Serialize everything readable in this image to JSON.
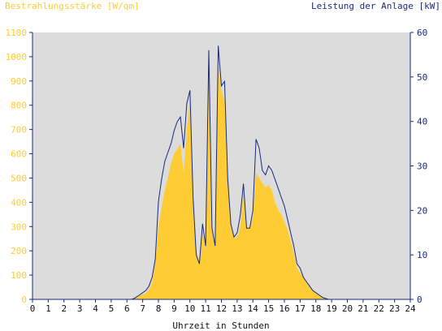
{
  "chart_data": {
    "type": "area",
    "title": "",
    "left_axis_label": "Bestrahlungsstärke [W/qm]",
    "right_axis_label": "Leistung der Anlage [kW]",
    "xlabel": "Uhrzeit in Stunden",
    "xlim": [
      0,
      24
    ],
    "ylim_left": [
      0,
      1100
    ],
    "ylim_right": [
      0,
      60
    ],
    "x_ticks": [
      "0",
      "1",
      "2",
      "3",
      "4",
      "5",
      "6",
      "7",
      "8",
      "9",
      "10",
      "11",
      "12",
      "13",
      "14",
      "15",
      "16",
      "17",
      "18",
      "19",
      "20",
      "21",
      "22",
      "23",
      "24"
    ],
    "y_left_ticks": [
      "0",
      "100",
      "200",
      "300",
      "400",
      "500",
      "600",
      "700",
      "800",
      "900",
      "1000",
      "1100"
    ],
    "y_right_ticks": [
      "0",
      "10",
      "20",
      "30",
      "40",
      "50",
      "60"
    ],
    "grid": false,
    "colors": {
      "irradiance": "#ffcc33",
      "power": "#1a2a7a",
      "plot_background": "#dcdcdc",
      "left_axis_text": "#ffcc33",
      "right_axis_text": "#1a2a7a"
    },
    "series": [
      {
        "name": "Bestrahlungsstärke [W/qm]",
        "axis": "left",
        "style": "filled-area",
        "x": [
          0,
          6.3,
          6.5,
          6.8,
          7.0,
          7.2,
          7.4,
          7.6,
          7.8,
          8.0,
          8.2,
          8.4,
          8.6,
          8.8,
          9.0,
          9.2,
          9.4,
          9.6,
          9.8,
          10.0,
          10.2,
          10.4,
          10.6,
          10.8,
          11.0,
          11.2,
          11.4,
          11.6,
          11.8,
          12.0,
          12.2,
          12.4,
          12.6,
          12.8,
          13.0,
          13.2,
          13.4,
          13.6,
          13.8,
          14.0,
          14.2,
          14.4,
          14.6,
          14.8,
          15.0,
          15.2,
          15.4,
          15.6,
          15.8,
          16.0,
          16.2,
          16.4,
          16.6,
          16.8,
          17.0,
          17.2,
          17.4,
          17.6,
          17.8,
          18.0,
          18.2,
          18.4,
          18.6,
          18.8,
          19.0,
          19.2,
          24
        ],
        "values": [
          0,
          0,
          5,
          15,
          20,
          25,
          40,
          70,
          150,
          300,
          380,
          450,
          500,
          560,
          600,
          620,
          640,
          520,
          700,
          820,
          420,
          180,
          150,
          280,
          200,
          1000,
          280,
          210,
          980,
          860,
          820,
          480,
          300,
          250,
          260,
          300,
          440,
          300,
          290,
          340,
          520,
          500,
          480,
          460,
          470,
          450,
          400,
          370,
          350,
          320,
          290,
          240,
          190,
          130,
          110,
          90,
          70,
          50,
          35,
          25,
          15,
          10,
          5,
          2,
          0,
          0,
          0
        ]
      },
      {
        "name": "Leistung der Anlage [kW]",
        "axis": "right",
        "style": "line",
        "x": [
          0,
          6.3,
          6.5,
          6.8,
          7.0,
          7.2,
          7.4,
          7.6,
          7.8,
          8.0,
          8.2,
          8.4,
          8.6,
          8.8,
          9.0,
          9.2,
          9.4,
          9.6,
          9.8,
          10.0,
          10.2,
          10.4,
          10.6,
          10.8,
          11.0,
          11.2,
          11.4,
          11.6,
          11.8,
          12.0,
          12.2,
          12.4,
          12.6,
          12.8,
          13.0,
          13.2,
          13.4,
          13.6,
          13.8,
          14.0,
          14.2,
          14.4,
          14.6,
          14.8,
          15.0,
          15.2,
          15.4,
          15.6,
          15.8,
          16.0,
          16.2,
          16.4,
          16.6,
          16.8,
          17.0,
          17.2,
          17.4,
          17.6,
          17.8,
          18.0,
          18.2,
          18.4,
          18.6,
          18.8,
          19.0,
          19.2,
          24
        ],
        "values": [
          0,
          0,
          0.3,
          1,
          1.5,
          2,
          3,
          5,
          9,
          22,
          27,
          31,
          33,
          35,
          38,
          40,
          41,
          34,
          44,
          47,
          23,
          10,
          8,
          17,
          12,
          56,
          16,
          12,
          57,
          48,
          49,
          27,
          17,
          14,
          15,
          19,
          26,
          16,
          16,
          20,
          36,
          34,
          29,
          28,
          30,
          29,
          27,
          25,
          23,
          21,
          18,
          15,
          12,
          8,
          7,
          5,
          4,
          3,
          2,
          1.5,
          1,
          0.5,
          0.2,
          0,
          0,
          0,
          0
        ]
      }
    ]
  }
}
